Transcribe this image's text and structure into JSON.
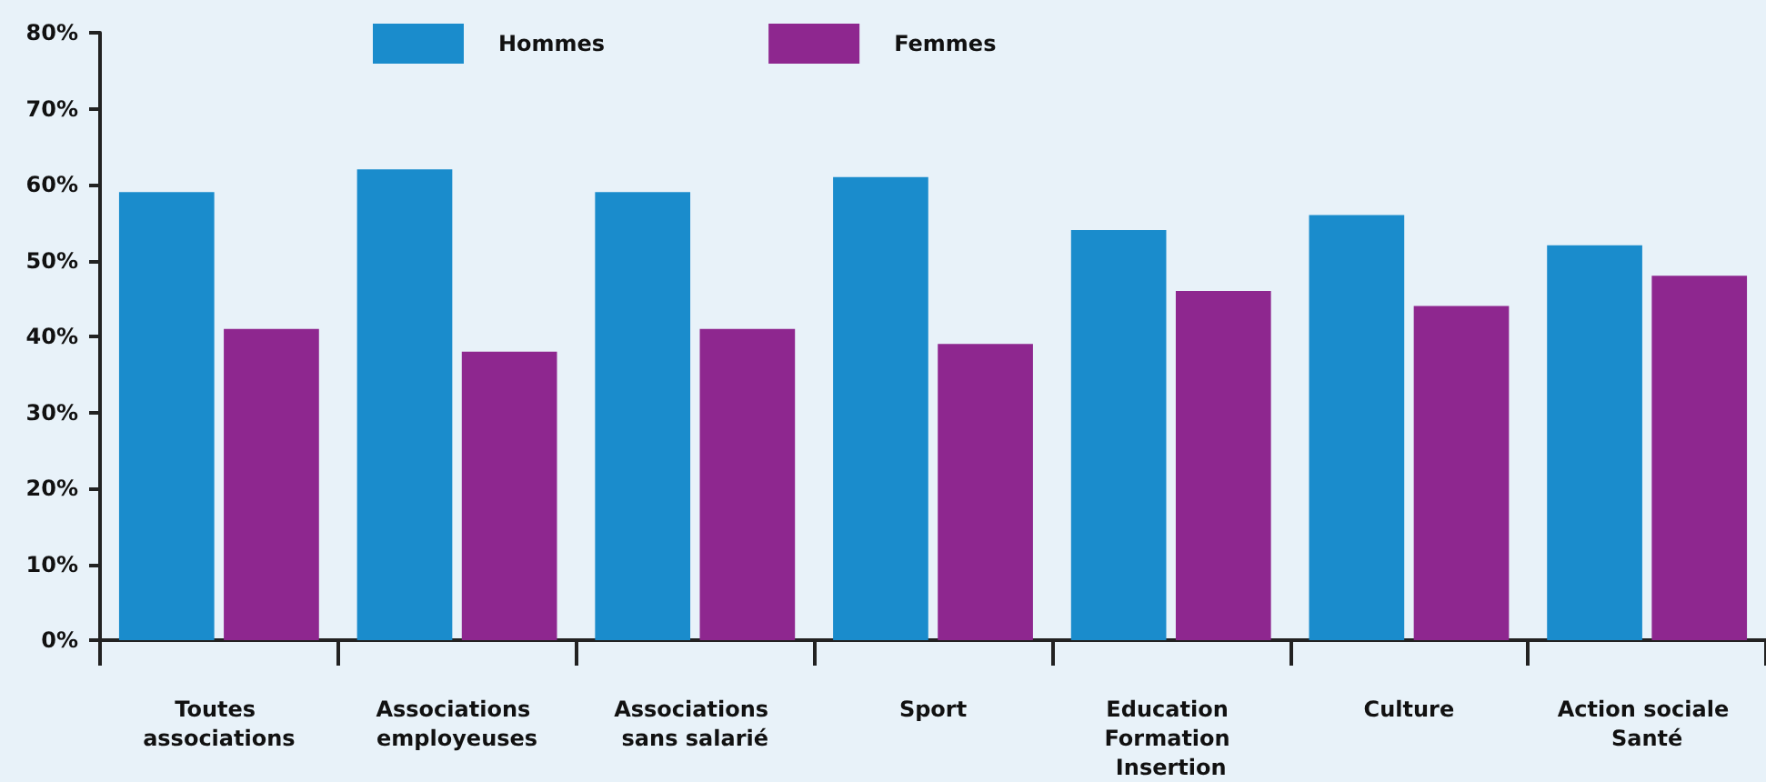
{
  "chart_data": {
    "type": "bar",
    "categories": [
      "Toutes associations",
      "Associations employeuses",
      "Associations sans salarié",
      "Sport",
      "Education Formation Insertion",
      "Culture",
      "Action sociale Santé"
    ],
    "series": [
      {
        "name": "Hommes",
        "color": "#1a8ccc",
        "values": [
          59,
          62,
          59,
          61,
          54,
          56,
          52
        ]
      },
      {
        "name": "Femmes",
        "color": "#8e278f",
        "values": [
          41,
          38,
          41,
          39,
          46,
          44,
          48
        ]
      }
    ],
    "ylim": [
      0,
      80
    ],
    "yticks": [
      {
        "value": 0,
        "label": "0%"
      },
      {
        "value": 10,
        "label": "10%"
      },
      {
        "value": 20,
        "label": "20%"
      },
      {
        "value": 30,
        "label": "30%"
      },
      {
        "value": 40,
        "label": "40%"
      },
      {
        "value": 50,
        "label": "50%"
      },
      {
        "value": 60,
        "label": "60%"
      },
      {
        "value": 70,
        "label": "70%"
      },
      {
        "value": 80,
        "label": "80%"
      }
    ],
    "grid": false,
    "legend": "top"
  }
}
